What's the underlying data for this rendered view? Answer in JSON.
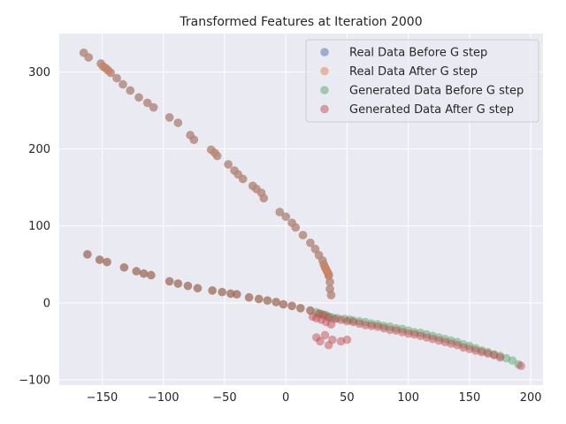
{
  "chart_data": {
    "type": "scatter",
    "title": "Transformed Features at Iteration 2000",
    "xlabel": "",
    "ylabel": "",
    "xlim": [
      -185,
      210
    ],
    "ylim": [
      -107,
      350
    ],
    "x_ticks": [
      -150,
      -100,
      -50,
      0,
      50,
      100,
      150,
      200
    ],
    "y_ticks": [
      -100,
      0,
      100,
      200,
      300
    ],
    "x_tick_labels": [
      "−150",
      "−100",
      "−50",
      "0",
      "50",
      "100",
      "150",
      "200"
    ],
    "y_tick_labels": [
      "−100",
      "0",
      "100",
      "200",
      "300"
    ],
    "grid": true,
    "legend_position": "upper right",
    "background": "#eaeaf2",
    "series": [
      {
        "name": "Real Data Before G step",
        "color": "#4c72b0",
        "x": [
          -165,
          -161,
          -151,
          -149,
          -147,
          -145,
          -143,
          -138,
          -133,
          -127,
          -120,
          -113,
          -108,
          -95,
          -88,
          -78,
          -75,
          -61,
          -58,
          -56,
          -47,
          -42,
          -39,
          -35,
          -27,
          -24,
          -20,
          -18,
          -5,
          0,
          5,
          8,
          14,
          20,
          24,
          27,
          30,
          31,
          32,
          33,
          34,
          35,
          35,
          36,
          36,
          37
        ],
        "y": [
          325,
          319,
          311,
          307,
          305,
          302,
          299,
          292,
          284,
          276,
          267,
          260,
          254,
          241,
          234,
          218,
          212,
          199,
          195,
          191,
          180,
          172,
          167,
          161,
          152,
          148,
          143,
          136,
          118,
          112,
          104,
          98,
          88,
          78,
          70,
          62,
          55,
          50,
          46,
          43,
          40,
          37,
          35,
          27,
          18,
          10
        ]
      },
      {
        "name": "Real Data After G step",
        "color": "#dd8452",
        "x": [
          -165,
          -161,
          -151,
          -149,
          -147,
          -145,
          -143,
          -138,
          -133,
          -127,
          -120,
          -113,
          -108,
          -95,
          -88,
          -78,
          -75,
          -61,
          -58,
          -56,
          -47,
          -42,
          -39,
          -35,
          -27,
          -24,
          -20,
          -18,
          -5,
          0,
          5,
          8,
          14,
          20,
          24,
          27,
          30,
          31,
          32,
          33,
          34,
          35,
          35,
          36,
          36,
          37
        ],
        "y": [
          325,
          319,
          311,
          307,
          305,
          302,
          299,
          292,
          284,
          276,
          267,
          260,
          254,
          241,
          234,
          218,
          212,
          199,
          195,
          191,
          180,
          172,
          167,
          161,
          152,
          148,
          143,
          136,
          118,
          112,
          104,
          98,
          88,
          78,
          70,
          62,
          55,
          50,
          46,
          43,
          40,
          37,
          35,
          27,
          18,
          10
        ]
      },
      {
        "name": "Generated Data Before G step",
        "color": "#55a868",
        "x": [
          -162,
          -152,
          -146,
          -132,
          -122,
          -116,
          -110,
          -95,
          -88,
          -80,
          -72,
          -60,
          -52,
          -45,
          -40,
          -30,
          -22,
          -15,
          -8,
          -2,
          5,
          12,
          20,
          25,
          28,
          30,
          33,
          35,
          38,
          42,
          48,
          52,
          55,
          60,
          65,
          70,
          75,
          80,
          85,
          90,
          95,
          100,
          105,
          110,
          115,
          120,
          125,
          130,
          135,
          140,
          145,
          150,
          155,
          160,
          165,
          170,
          175,
          180,
          185,
          190
        ],
        "y": [
          63,
          56,
          53,
          46,
          41,
          38,
          36,
          28,
          25,
          22,
          19,
          16,
          14,
          12,
          11,
          7,
          5,
          3,
          1,
          -2,
          -4,
          -7,
          -10,
          -12,
          -14,
          -15,
          -16,
          -18,
          -19,
          -20,
          -21,
          -22,
          -23,
          -24,
          -25,
          -27,
          -28,
          -30,
          -31,
          -33,
          -34,
          -36,
          -38,
          -39,
          -41,
          -43,
          -45,
          -47,
          -49,
          -51,
          -54,
          -56,
          -59,
          -62,
          -64,
          -67,
          -69,
          -72,
          -75,
          -80
        ]
      },
      {
        "name": "Generated Data After G step",
        "color": "#c44e52",
        "x": [
          -162,
          -152,
          -146,
          -132,
          -122,
          -116,
          -110,
          -95,
          -88,
          -80,
          -72,
          -60,
          -52,
          -45,
          -40,
          -30,
          -22,
          -15,
          -8,
          -2,
          5,
          12,
          20,
          22,
          25,
          27,
          29,
          31,
          33,
          35,
          37,
          40,
          45,
          50,
          55,
          60,
          65,
          70,
          75,
          80,
          85,
          90,
          95,
          100,
          105,
          110,
          115,
          120,
          125,
          130,
          135,
          140,
          145,
          150,
          155,
          160,
          165,
          170,
          175,
          192,
          25,
          28,
          32,
          35,
          38,
          45,
          50
        ],
        "y": [
          63,
          56,
          53,
          46,
          41,
          38,
          36,
          28,
          25,
          22,
          19,
          16,
          14,
          12,
          11,
          7,
          5,
          3,
          1,
          -2,
          -4,
          -7,
          -10,
          -18,
          -20,
          -14,
          -22,
          -16,
          -25,
          -19,
          -28,
          -21,
          -22,
          -24,
          -25,
          -27,
          -29,
          -30,
          -31,
          -33,
          -35,
          -36,
          -38,
          -40,
          -41,
          -43,
          -45,
          -47,
          -49,
          -51,
          -53,
          -55,
          -58,
          -60,
          -62,
          -64,
          -66,
          -68,
          -71,
          -82,
          -45,
          -50,
          -42,
          -55,
          -48,
          -50,
          -48
        ]
      }
    ]
  }
}
